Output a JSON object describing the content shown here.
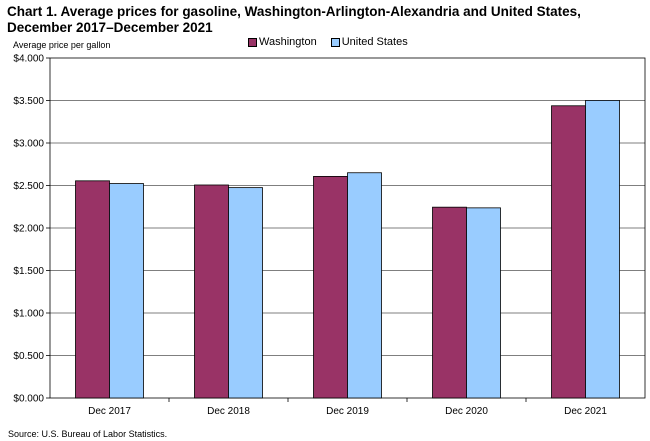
{
  "title": "Chart 1. Average prices for gasoline, Washington-Arlington-Alexandria and United States, December 2017–December 2021",
  "ylabel": "Average price per gallon",
  "source": "Source: U.S. Bureau of Labor Statistics.",
  "chart_data": {
    "type": "bar",
    "title": "Chart 1. Average prices for gasoline, Washington-Arlington-Alexandria and United States, December 2017–December 2021",
    "xlabel": "",
    "ylabel": "Average price per gallon",
    "categories": [
      "Dec 2017",
      "Dec 2018",
      "Dec 2019",
      "Dec 2020",
      "Dec 2021"
    ],
    "series": [
      {
        "name": "Washington",
        "color": "#993366",
        "values": [
          2.555,
          2.506,
          2.607,
          2.245,
          3.438
        ]
      },
      {
        "name": "United States",
        "color": "#99ccff",
        "values": [
          2.523,
          2.475,
          2.65,
          2.237,
          3.501
        ]
      }
    ],
    "ylim": [
      0,
      4
    ],
    "yticks": [
      0,
      0.5,
      1.0,
      1.5,
      2.0,
      2.5,
      3.0,
      3.5,
      4.0
    ],
    "ytick_labels": [
      "$0.000",
      "$0.500",
      "$1.000",
      "$1.500",
      "$2.000",
      "$2.500",
      "$3.000",
      "$3.500",
      "$4.000"
    ],
    "grid": true,
    "legend_position": "top-center"
  }
}
